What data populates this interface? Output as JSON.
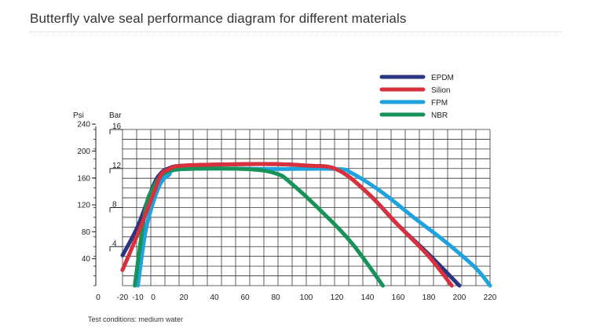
{
  "page": {
    "title": "Butterfly valve seal performance diagram for different materials",
    "footnote": "Test conditions: medium water"
  },
  "chart_data": {
    "type": "line",
    "title": "Butterfly valve seal performance diagram for different materials",
    "xlabel": "",
    "ylabel_left": "Psi",
    "ylabel_right": "Bar",
    "x_axis_zero_label": "0",
    "xlim": [
      -20,
      220
    ],
    "ylim": [
      0,
      16
    ],
    "x_ticks": [
      -20,
      -10,
      0,
      20,
      40,
      60,
      80,
      100,
      120,
      140,
      160,
      180,
      200,
      220
    ],
    "x_tick_labels": [
      "-20",
      "-10",
      "0",
      "20",
      "40",
      "60",
      "80",
      "100",
      "120",
      "140",
      "160",
      "180",
      "200",
      "220"
    ],
    "bar_ticks": [
      4,
      8,
      12,
      16
    ],
    "bar_tick_labels": [
      "4",
      "8",
      "12",
      "16"
    ],
    "psi_ticks": [
      40,
      80,
      120,
      160,
      200,
      240
    ],
    "psi_tick_labels": [
      "40",
      "80",
      "120",
      "160",
      "200",
      "240"
    ],
    "grid": true,
    "legend_position": "top-right",
    "series": [
      {
        "name": "EPDM",
        "color": "#2b3680",
        "x": [
          -20,
          -10,
          0,
          5,
          10,
          20,
          60,
          80,
          100,
          120,
          140,
          160,
          180,
          200
        ],
        "y": [
          3.1,
          6.1,
          10.2,
          11.5,
          12.0,
          12.3,
          12.45,
          12.45,
          12.3,
          11.9,
          9.5,
          6.2,
          3.2,
          0
        ]
      },
      {
        "name": "Silion",
        "color": "#d8303c",
        "x": [
          -20,
          -10,
          0,
          5,
          10,
          20,
          60,
          80,
          100,
          120,
          140,
          160,
          180,
          195
        ],
        "y": [
          1.6,
          5.3,
          9.3,
          11.3,
          11.9,
          12.3,
          12.45,
          12.45,
          12.3,
          11.9,
          9.5,
          6.2,
          3.0,
          0
        ]
      },
      {
        "name": "FPM",
        "color": "#1fa3df",
        "x": [
          -10,
          -5,
          0,
          5,
          10,
          20,
          80,
          120,
          130,
          150,
          170,
          190,
          210,
          220
        ],
        "y": [
          0,
          5.5,
          8.5,
          10.5,
          11.3,
          11.95,
          11.95,
          11.95,
          11.5,
          9.5,
          7.0,
          4.6,
          1.9,
          0
        ]
      },
      {
        "name": "NBR",
        "color": "#17935a",
        "x": [
          -12,
          -5,
          0,
          5,
          10,
          20,
          60,
          80,
          90,
          110,
          130,
          150
        ],
        "y": [
          0,
          7.8,
          10.0,
          11.2,
          11.7,
          11.95,
          11.95,
          11.5,
          10.5,
          7.6,
          4.3,
          0
        ]
      }
    ]
  }
}
